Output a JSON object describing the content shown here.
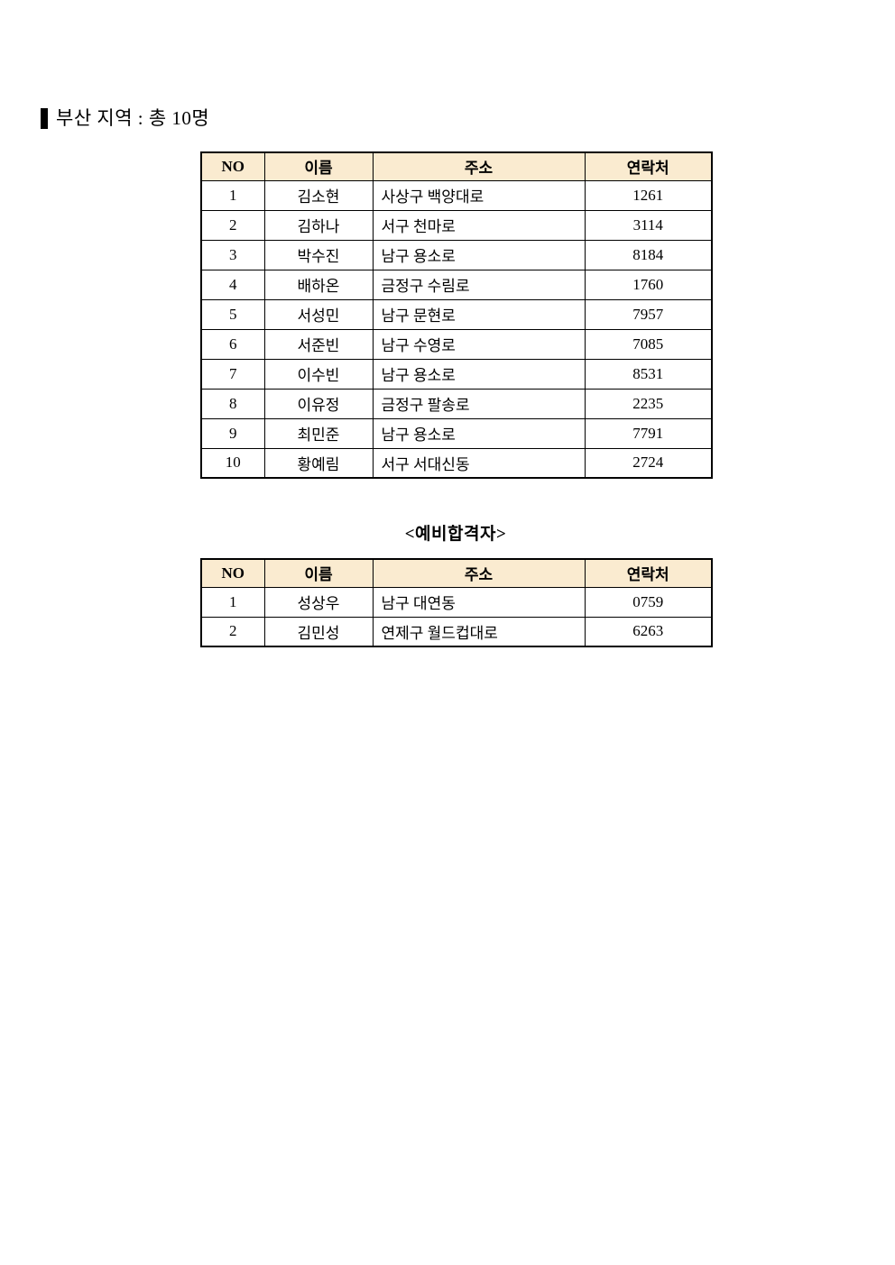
{
  "page": {
    "title": "부산 지역 : 총 10명"
  },
  "busan_table": {
    "headers": [
      "NO",
      "이름",
      "주소",
      "연락처"
    ],
    "rows": [
      [
        "1",
        "김소현",
        "사상구 백양대로",
        "1261"
      ],
      [
        "2",
        "김하나",
        "서구 천마로",
        "3114"
      ],
      [
        "3",
        "박수진",
        "남구 용소로",
        "8184"
      ],
      [
        "4",
        "배하온",
        "금정구 수림로",
        "1760"
      ],
      [
        "5",
        "서성민",
        "남구 문현로",
        "7957"
      ],
      [
        "6",
        "서준빈",
        "남구 수영로",
        "7085"
      ],
      [
        "7",
        "이수빈",
        "남구 용소로",
        "8531"
      ],
      [
        "8",
        "이유정",
        "금정구 팔송로",
        "2235"
      ],
      [
        "9",
        "최민준",
        "남구 용소로",
        "7791"
      ],
      [
        "10",
        "황예림",
        "서구 서대신동",
        "2724"
      ]
    ]
  },
  "waitlist_table": {
    "title": "<예비합격자>",
    "headers": [
      "NO",
      "이름",
      "주소",
      "연락처"
    ],
    "rows": [
      [
        "1",
        "성상우",
        "남구 대연동",
        "0759"
      ],
      [
        "2",
        "김민성",
        "연제구 월드컵대로",
        "6263"
      ]
    ]
  },
  "colors": {
    "header_bg": "#FAEBD0",
    "border": "#000000",
    "title_bar": "#000000"
  }
}
